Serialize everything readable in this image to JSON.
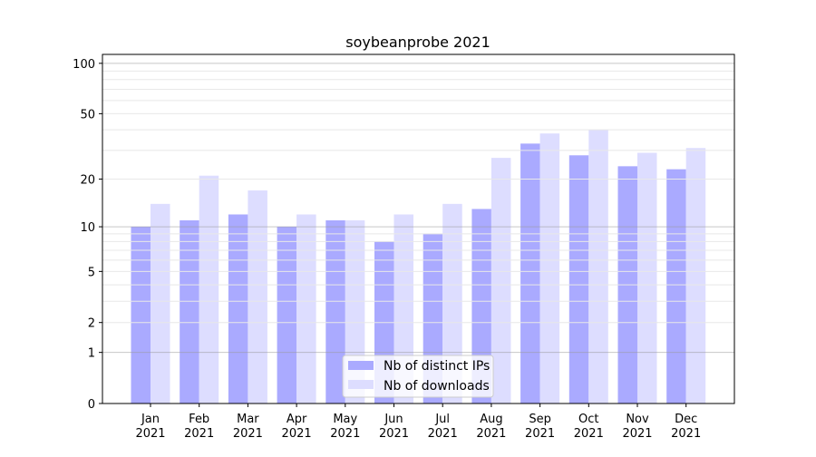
{
  "chart_data": {
    "type": "bar",
    "title": "soybeanprobe 2021",
    "xlabel": "",
    "ylabel": "",
    "yscale": "log10(y+1)",
    "ylim": [
      0,
      113
    ],
    "yticks": [
      0,
      1,
      2,
      5,
      10,
      20,
      50,
      100
    ],
    "ytick_labels": [
      "0",
      "1",
      "2",
      "5",
      "10",
      "20",
      "50",
      "100"
    ],
    "grid": true,
    "legend_position": "bottom-center",
    "categories": [
      "Jan\n2021",
      "Feb\n2021",
      "Mar\n2021",
      "Apr\n2021",
      "May\n2021",
      "Jun\n2021",
      "Jul\n2021",
      "Aug\n2021",
      "Sep\n2021",
      "Oct\n2021",
      "Nov\n2021",
      "Dec\n2021"
    ],
    "category_labels": [
      [
        "Jan",
        "2021"
      ],
      [
        "Feb",
        "2021"
      ],
      [
        "Mar",
        "2021"
      ],
      [
        "Apr",
        "2021"
      ],
      [
        "May",
        "2021"
      ],
      [
        "Jun",
        "2021"
      ],
      [
        "Jul",
        "2021"
      ],
      [
        "Aug",
        "2021"
      ],
      [
        "Sep",
        "2021"
      ],
      [
        "Oct",
        "2021"
      ],
      [
        "Nov",
        "2021"
      ],
      [
        "Dec",
        "2021"
      ]
    ],
    "series": [
      {
        "name": "Nb of distinct IPs",
        "color": "#aaaaff",
        "values": [
          10,
          11,
          12,
          10,
          11,
          8,
          9,
          13,
          33,
          28,
          24,
          23
        ]
      },
      {
        "name": "Nb of downloads",
        "color": "#ddddff",
        "values": [
          14,
          21,
          17,
          12,
          11,
          12,
          14,
          27,
          38,
          40,
          29,
          31
        ]
      }
    ]
  }
}
